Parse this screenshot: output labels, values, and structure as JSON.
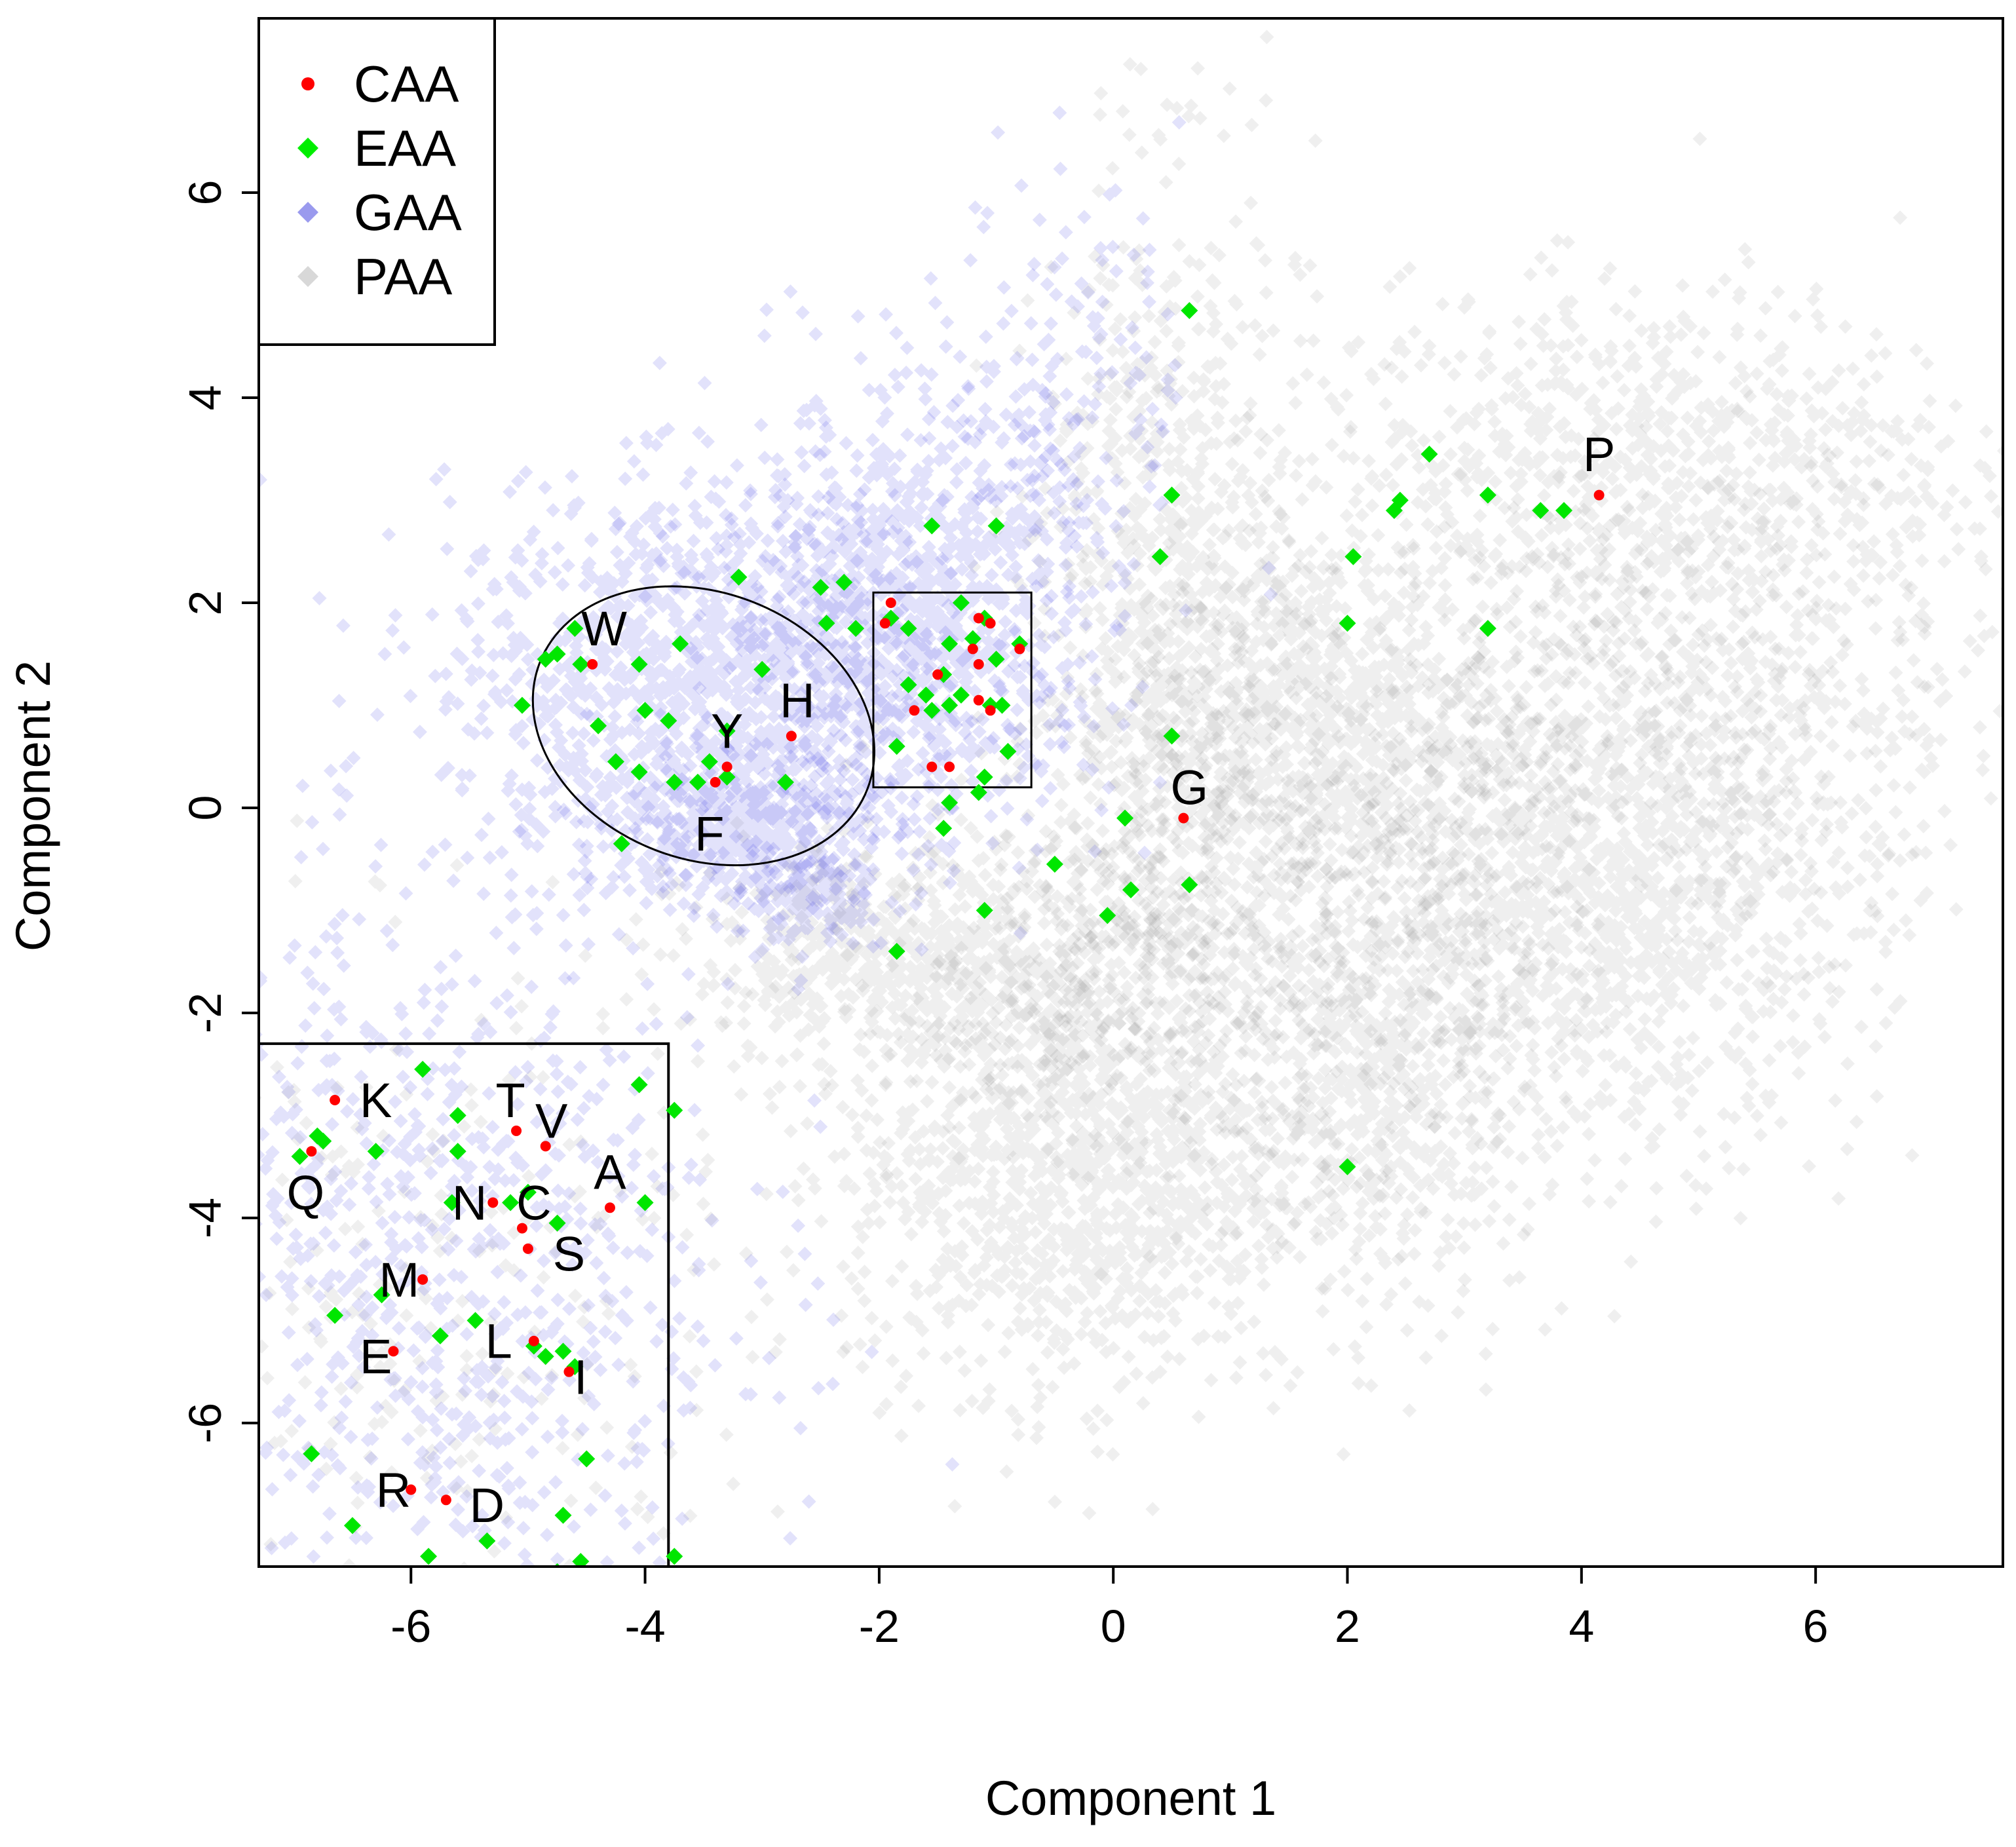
{
  "chart_data": {
    "type": "scatter",
    "title": "",
    "xlabel": "Component 1",
    "ylabel": "Component 2",
    "xlim": [
      -7.3,
      7.6
    ],
    "ylim": [
      -7.4,
      7.7
    ],
    "xticks": [
      "-6",
      "-4",
      "-2",
      "0",
      "2",
      "4",
      "6"
    ],
    "yticks": [
      "-6",
      "-4",
      "-2",
      "0",
      "2",
      "4",
      "6"
    ],
    "xtick_values": [
      -6,
      -4,
      -2,
      0,
      2,
      4,
      6
    ],
    "ytick_values": [
      -6,
      -4,
      -2,
      0,
      2,
      4,
      6
    ],
    "grid": false,
    "legend_position": "top-left",
    "legend": [
      {
        "name": "CAA",
        "color": "#ff0000",
        "marker": "small-dot"
      },
      {
        "name": "EAA",
        "color": "#00ee00",
        "marker": "diamond"
      },
      {
        "name": "GAA",
        "color": "#9a9aee",
        "marker": "diamond"
      },
      {
        "name": "PAA",
        "color": "#d8d8d8",
        "marker": "diamond"
      }
    ],
    "colors": {
      "CAA": "#ff0000",
      "EAA": "#00e600",
      "GAA": "#3030e0",
      "PAA": "#7a7a7a"
    },
    "background_clouds": {
      "GAA": [
        {
          "cx": -3.4,
          "cy": 1.2,
          "sx": 1.15,
          "sy": 0.95,
          "n": 1300
        },
        {
          "cx": -1.7,
          "cy": 2.0,
          "sx": 0.85,
          "sy": 1.0,
          "n": 900
        },
        {
          "cx": -3.2,
          "cy": -0.2,
          "sx": 0.55,
          "sy": 0.35,
          "n": 450
        },
        {
          "cx": -2.6,
          "cy": -0.9,
          "sx": 0.35,
          "sy": 0.2,
          "n": 150
        },
        {
          "cx": -0.4,
          "cy": 4.3,
          "sx": 0.5,
          "sy": 1.0,
          "n": 150
        },
        {
          "cx": -6.0,
          "cy": -4.5,
          "sx": 1.4,
          "sy": 1.9,
          "n": 900
        }
      ],
      "PAA": [
        {
          "cx": -0.3,
          "cy": -3.5,
          "sx": 1.0,
          "sy": 1.1,
          "n": 1300
        },
        {
          "cx": -1.6,
          "cy": -1.5,
          "sx": 1.0,
          "sy": 0.55,
          "n": 700
        },
        {
          "cx": 0.5,
          "cy": 1.8,
          "sx": 0.55,
          "sy": 2.1,
          "n": 900
        },
        {
          "cx": 1.7,
          "cy": 0.8,
          "sx": 0.8,
          "sy": 0.9,
          "n": 900
        },
        {
          "cx": 4.2,
          "cy": -0.9,
          "sx": 1.1,
          "sy": 1.2,
          "n": 1300
        },
        {
          "cx": 2.3,
          "cy": -2.6,
          "sx": 0.6,
          "sy": 1.1,
          "n": 600
        },
        {
          "cx": 4.5,
          "cy": 3.3,
          "sx": 1.4,
          "sy": 0.9,
          "n": 900
        },
        {
          "cx": 5.2,
          "cy": 1.0,
          "sx": 1.3,
          "sy": 1.1,
          "n": 600
        },
        {
          "cx": 1.0,
          "cy": -1.2,
          "sx": 1.4,
          "sy": 1.2,
          "n": 600
        },
        {
          "cx": -6.0,
          "cy": -4.8,
          "sx": 1.5,
          "sy": 1.8,
          "n": 300
        }
      ]
    },
    "EAA": [
      [
        0.65,
        4.85
      ],
      [
        2.7,
        3.45
      ],
      [
        2.4,
        2.9
      ],
      [
        2.45,
        3.0
      ],
      [
        3.2,
        3.05
      ],
      [
        3.65,
        2.9
      ],
      [
        3.85,
        2.9
      ],
      [
        0.5,
        3.05
      ],
      [
        0.4,
        2.45
      ],
      [
        2.05,
        2.45
      ],
      [
        2.0,
        1.8
      ],
      [
        3.2,
        1.75
      ],
      [
        0.5,
        0.7
      ],
      [
        0.1,
        -0.1
      ],
      [
        0.15,
        -0.8
      ],
      [
        0.65,
        -0.75
      ],
      [
        -0.05,
        -1.05
      ],
      [
        -0.5,
        -0.55
      ],
      [
        -1.1,
        -1.0
      ],
      [
        -1.85,
        -1.4
      ],
      [
        2.0,
        -3.5
      ],
      [
        -1.55,
        2.75
      ],
      [
        -1.0,
        2.75
      ],
      [
        -2.3,
        2.2
      ],
      [
        -2.5,
        2.15
      ],
      [
        -2.45,
        1.8
      ],
      [
        -2.2,
        1.75
      ],
      [
        -1.3,
        2.0
      ],
      [
        -1.1,
        1.85
      ],
      [
        -1.75,
        1.75
      ],
      [
        -1.9,
        1.85
      ],
      [
        -1.4,
        1.6
      ],
      [
        -1.2,
        1.65
      ],
      [
        -0.8,
        1.6
      ],
      [
        -1.0,
        1.45
      ],
      [
        -1.75,
        1.2
      ],
      [
        -1.6,
        1.1
      ],
      [
        -1.45,
        1.3
      ],
      [
        -1.3,
        1.1
      ],
      [
        -1.05,
        1.0
      ],
      [
        -0.95,
        1.0
      ],
      [
        -1.55,
        0.95
      ],
      [
        -1.4,
        1.0
      ],
      [
        -1.85,
        0.6
      ],
      [
        -0.9,
        0.55
      ],
      [
        -1.1,
        0.3
      ],
      [
        -1.4,
        0.05
      ],
      [
        -1.45,
        -0.2
      ],
      [
        -1.15,
        0.15
      ],
      [
        -4.6,
        1.75
      ],
      [
        -4.75,
        1.5
      ],
      [
        -4.85,
        1.45
      ],
      [
        -4.55,
        1.4
      ],
      [
        -3.7,
        1.6
      ],
      [
        -4.05,
        1.4
      ],
      [
        -3.2,
        2.25
      ],
      [
        -3.0,
        1.35
      ],
      [
        -4.4,
        0.8
      ],
      [
        -3.8,
        0.85
      ],
      [
        -4.0,
        0.95
      ],
      [
        -3.3,
        0.75
      ],
      [
        -3.45,
        0.45
      ],
      [
        -4.25,
        0.45
      ],
      [
        -4.05,
        0.35
      ],
      [
        -3.55,
        0.25
      ],
      [
        -3.75,
        0.25
      ],
      [
        -3.3,
        0.3
      ],
      [
        -2.8,
        0.25
      ],
      [
        -4.2,
        -0.35
      ],
      [
        -5.05,
        1.0
      ],
      [
        -5.9,
        -2.55
      ],
      [
        -5.6,
        -3.0
      ],
      [
        -5.6,
        -3.35
      ],
      [
        -6.3,
        -3.35
      ],
      [
        -6.75,
        -3.25
      ],
      [
        -6.8,
        -3.2
      ],
      [
        -6.95,
        -3.4
      ],
      [
        -5.65,
        -3.85
      ],
      [
        -5.15,
        -3.85
      ],
      [
        -5.0,
        -3.75
      ],
      [
        -4.75,
        -4.05
      ],
      [
        -4.05,
        -2.7
      ],
      [
        -3.75,
        -2.95
      ],
      [
        -4.0,
        -3.85
      ],
      [
        -6.25,
        -4.75
      ],
      [
        -6.65,
        -4.95
      ],
      [
        -5.75,
        -5.15
      ],
      [
        -5.45,
        -5.0
      ],
      [
        -4.95,
        -5.25
      ],
      [
        -4.85,
        -5.35
      ],
      [
        -4.7,
        -5.3
      ],
      [
        -4.6,
        -5.45
      ],
      [
        -6.85,
        -6.3
      ],
      [
        -4.5,
        -6.35
      ],
      [
        -4.7,
        -6.9
      ],
      [
        -5.35,
        -7.15
      ],
      [
        -5.85,
        -7.3
      ],
      [
        -4.55,
        -7.35
      ],
      [
        -4.75,
        -7.45
      ],
      [
        -3.75,
        -7.3
      ],
      [
        -6.5,
        -7.0
      ]
    ],
    "CAA": [
      [
        0.6,
        -0.1
      ],
      [
        4.15,
        3.05
      ],
      [
        -1.9,
        2.0
      ],
      [
        -1.95,
        1.8
      ],
      [
        -1.15,
        1.85
      ],
      [
        -1.05,
        1.8
      ],
      [
        -1.2,
        1.55
      ],
      [
        -1.15,
        1.4
      ],
      [
        -0.8,
        1.55
      ],
      [
        -1.5,
        1.3
      ],
      [
        -1.15,
        1.05
      ],
      [
        -1.05,
        0.95
      ],
      [
        -1.7,
        0.95
      ],
      [
        -1.55,
        0.4
      ],
      [
        -1.4,
        0.4
      ],
      [
        -4.45,
        1.4
      ],
      [
        -2.75,
        0.7
      ],
      [
        -3.3,
        0.4
      ],
      [
        -3.4,
        0.25
      ],
      [
        -6.65,
        -2.85
      ],
      [
        -6.85,
        -3.35
      ],
      [
        -5.1,
        -3.15
      ],
      [
        -4.85,
        -3.3
      ],
      [
        -5.3,
        -3.85
      ],
      [
        -5.05,
        -4.1
      ],
      [
        -5.0,
        -4.3
      ],
      [
        -4.3,
        -3.9
      ],
      [
        -5.9,
        -4.6
      ],
      [
        -6.15,
        -5.3
      ],
      [
        -4.95,
        -5.2
      ],
      [
        -4.65,
        -5.5
      ],
      [
        -6.0,
        -6.65
      ],
      [
        -5.7,
        -6.75
      ]
    ],
    "labels": [
      {
        "text": "P",
        "x": 4.15,
        "y": 3.45
      },
      {
        "text": "G",
        "x": 0.65,
        "y": 0.2
      },
      {
        "text": "W",
        "x": -4.35,
        "y": 1.75
      },
      {
        "text": "H",
        "x": -2.7,
        "y": 1.05
      },
      {
        "text": "Y",
        "x": -3.3,
        "y": 0.75
      },
      {
        "text": "F",
        "x": -3.45,
        "y": -0.25
      },
      {
        "text": "K",
        "x": -6.3,
        "y": -2.85
      },
      {
        "text": "T",
        "x": -5.15,
        "y": -2.85
      },
      {
        "text": "V",
        "x": -4.8,
        "y": -3.05
      },
      {
        "text": "A",
        "x": -4.3,
        "y": -3.55
      },
      {
        "text": "Q",
        "x": -6.9,
        "y": -3.75
      },
      {
        "text": "N",
        "x": -5.5,
        "y": -3.85
      },
      {
        "text": "C",
        "x": -4.95,
        "y": -3.85
      },
      {
        "text": "S",
        "x": -4.65,
        "y": -4.35
      },
      {
        "text": "M",
        "x": -6.1,
        "y": -4.6
      },
      {
        "text": "E",
        "x": -6.3,
        "y": -5.35
      },
      {
        "text": "L",
        "x": -5.25,
        "y": -5.2
      },
      {
        "text": "I",
        "x": -4.55,
        "y": -5.55
      },
      {
        "text": "R",
        "x": -6.15,
        "y": -6.65
      },
      {
        "text": "D",
        "x": -5.35,
        "y": -6.8
      }
    ],
    "annotations": [
      {
        "shape": "ellipse",
        "cx": -3.5,
        "cy": 0.8,
        "rx": 1.5,
        "ry": 1.3,
        "rotation_deg": -21
      },
      {
        "shape": "rectangle",
        "x0": -2.05,
        "x1": -0.7,
        "y0": 0.2,
        "y1": 2.1
      }
    ]
  }
}
